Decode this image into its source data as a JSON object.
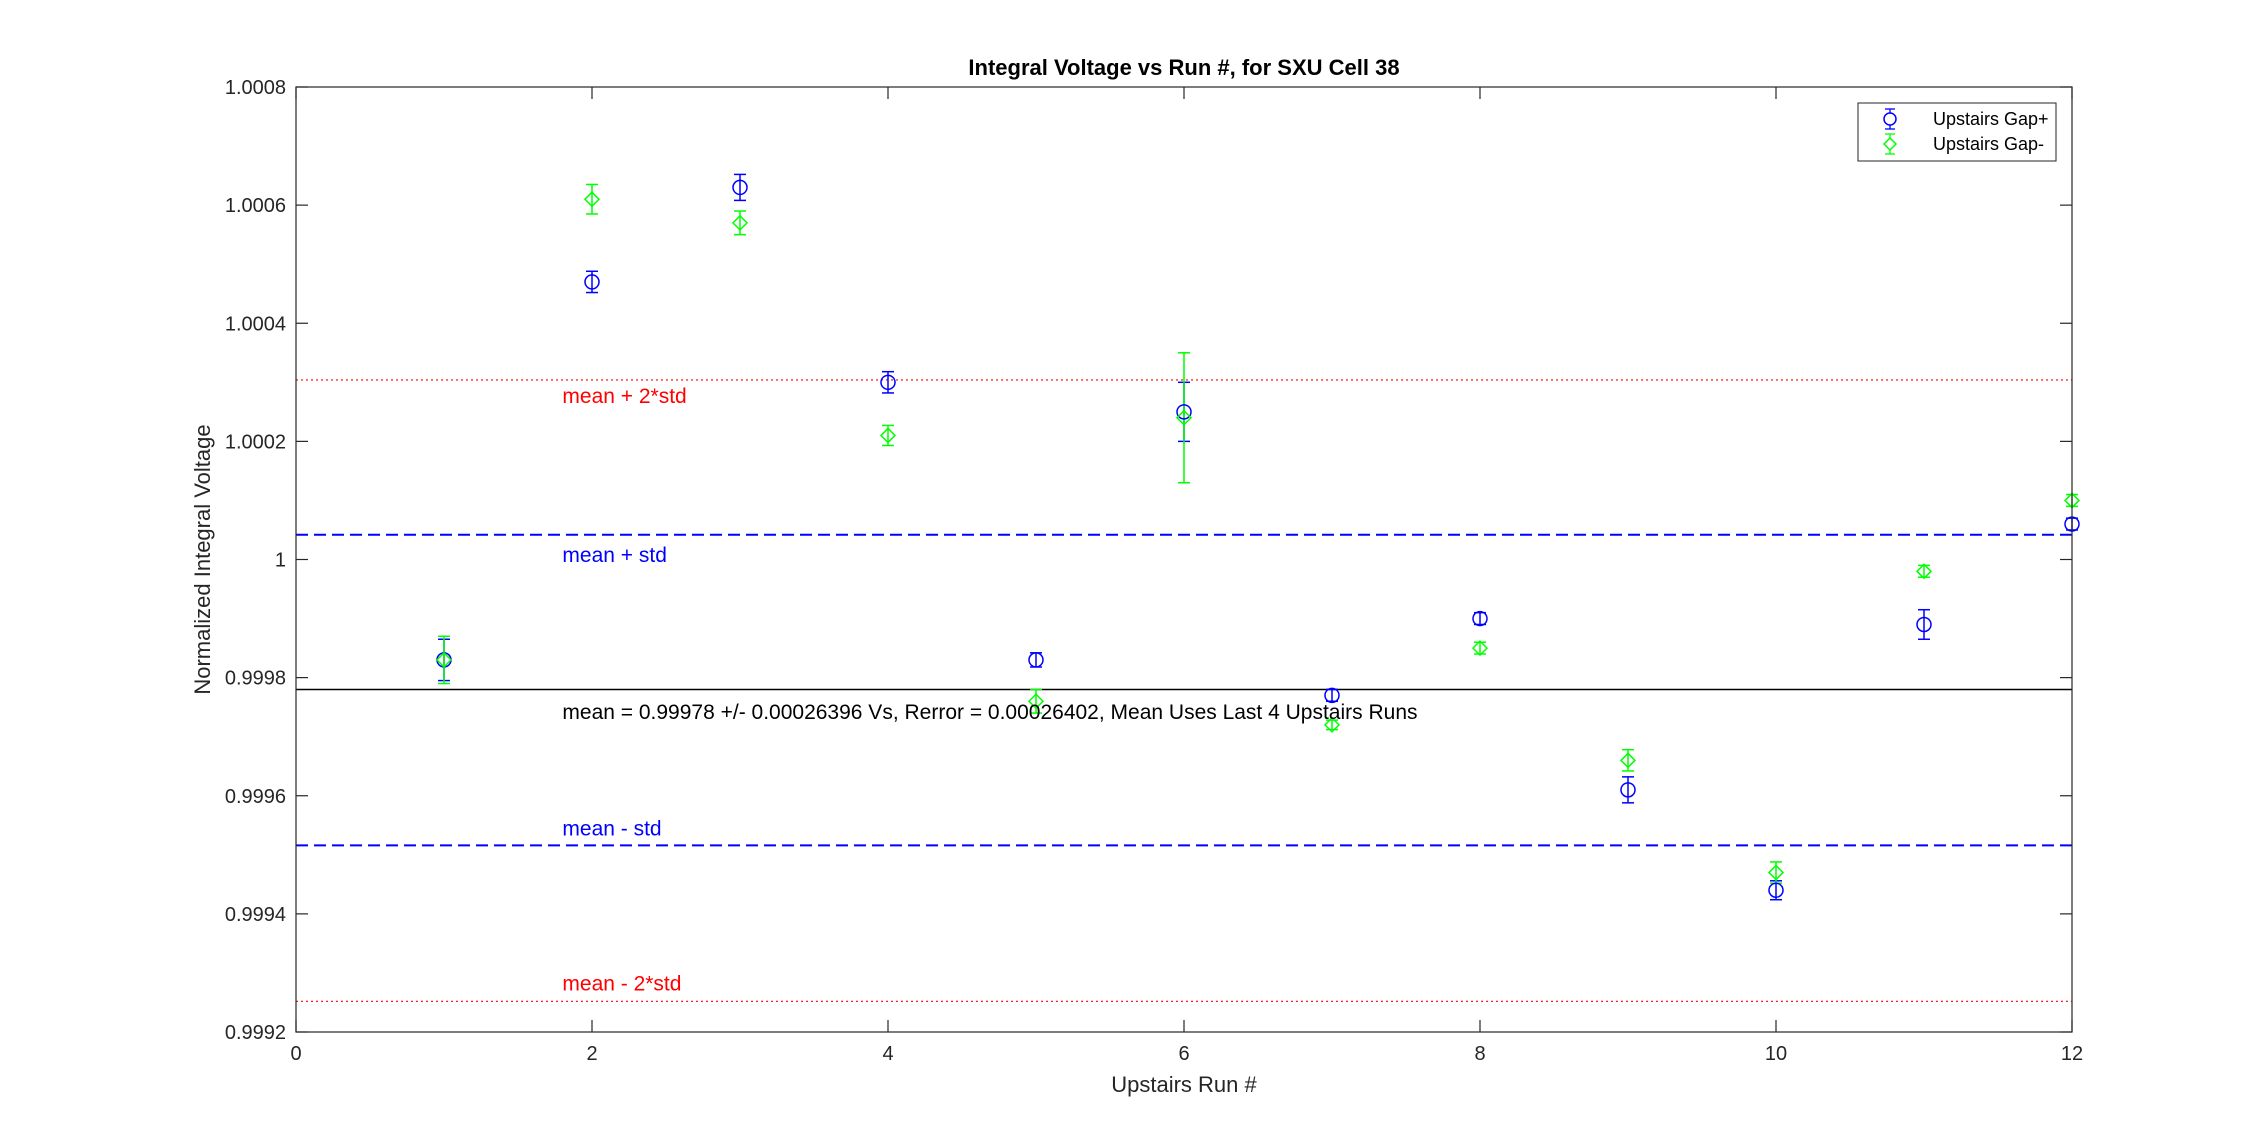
{
  "chart_data": {
    "type": "scatter",
    "title": "Integral Voltage vs Run #, for SXU Cell 38",
    "xlabel": "Upstairs Run #",
    "ylabel": "Normalized Integral Voltage",
    "xlim": [
      0,
      12
    ],
    "ylim": [
      0.9992,
      1.0008
    ],
    "xticks": [
      0,
      2,
      4,
      6,
      8,
      10,
      12
    ],
    "xtick_labels": [
      "0",
      "2",
      "4",
      "6",
      "8",
      "10",
      "12"
    ],
    "yticks": [
      0.9992,
      0.9994,
      0.9996,
      0.9998,
      1.0,
      1.0002,
      1.0004,
      1.0006,
      1.0008
    ],
    "ytick_labels": [
      "0.9992",
      "0.9994",
      "0.9996",
      "0.9998",
      "1",
      "1.0002",
      "1.0004",
      "1.0006",
      "1.0008"
    ],
    "grid": false,
    "legend_position": "top-right",
    "series": [
      {
        "name": "Upstairs Gap+",
        "color": "#0000ff",
        "marker": "circle",
        "x": [
          1,
          2,
          3,
          4,
          5,
          6,
          7,
          8,
          9,
          10,
          11,
          12
        ],
        "y": [
          0.99983,
          1.00047,
          1.00063,
          1.0003,
          0.99983,
          1.00025,
          0.99977,
          0.9999,
          0.99961,
          0.99944,
          0.99989,
          1.00006
        ],
        "err": [
          3.5e-05,
          1.8e-05,
          2.2e-05,
          1.8e-05,
          1.2e-05,
          5e-05,
          1e-05,
          1e-05,
          2.2e-05,
          1.6e-05,
          2.5e-05,
          1e-05
        ]
      },
      {
        "name": "Upstairs Gap-",
        "color": "#00ff00",
        "marker": "diamond",
        "x": [
          1,
          2,
          3,
          4,
          5,
          6,
          7,
          8,
          9,
          10,
          11,
          12
        ],
        "y": [
          0.99983,
          1.00061,
          1.00057,
          1.00021,
          0.99976,
          1.00024,
          0.99972,
          0.99985,
          0.99966,
          0.99947,
          0.99998,
          1.0001
        ],
        "err": [
          4e-05,
          2.5e-05,
          2e-05,
          1.7e-05,
          2e-05,
          0.00011,
          8e-06,
          1e-05,
          1.8e-05,
          1.8e-05,
          1e-05,
          1e-05
        ]
      }
    ],
    "reference_lines": [
      {
        "name": "mean + 2*std",
        "y": 1.000304,
        "color": "#ff0000",
        "style": "dotted"
      },
      {
        "name": "mean + std",
        "y": 1.000042,
        "color": "#0000ff",
        "style": "dashed"
      },
      {
        "name": "mean",
        "y": 0.99978,
        "color": "#000000",
        "style": "solid"
      },
      {
        "name": "mean - std",
        "y": 0.999516,
        "color": "#0000ff",
        "style": "dashed"
      },
      {
        "name": "mean - 2*std",
        "y": 0.999252,
        "color": "#ff0000",
        "style": "dotted"
      }
    ],
    "annotations": [
      {
        "text": "mean + 2*std",
        "x": 1.8,
        "y": 1.000265,
        "color": "#ff0000"
      },
      {
        "text": "mean + std",
        "x": 1.8,
        "y": 0.999996,
        "color": "#0000ff"
      },
      {
        "text": "mean = 0.99978 +/- 0.00026396 Vs, Rerror = 0.00026402, Mean Uses Last 4 Upstairs Runs",
        "x": 1.8,
        "y": 0.99973,
        "color": "#000000"
      },
      {
        "text": "mean - std",
        "x": 1.8,
        "y": 0.999533,
        "color": "#0000ff"
      },
      {
        "text": "mean - 2*std",
        "x": 1.8,
        "y": 0.99927,
        "color": "#ff0000"
      }
    ]
  }
}
